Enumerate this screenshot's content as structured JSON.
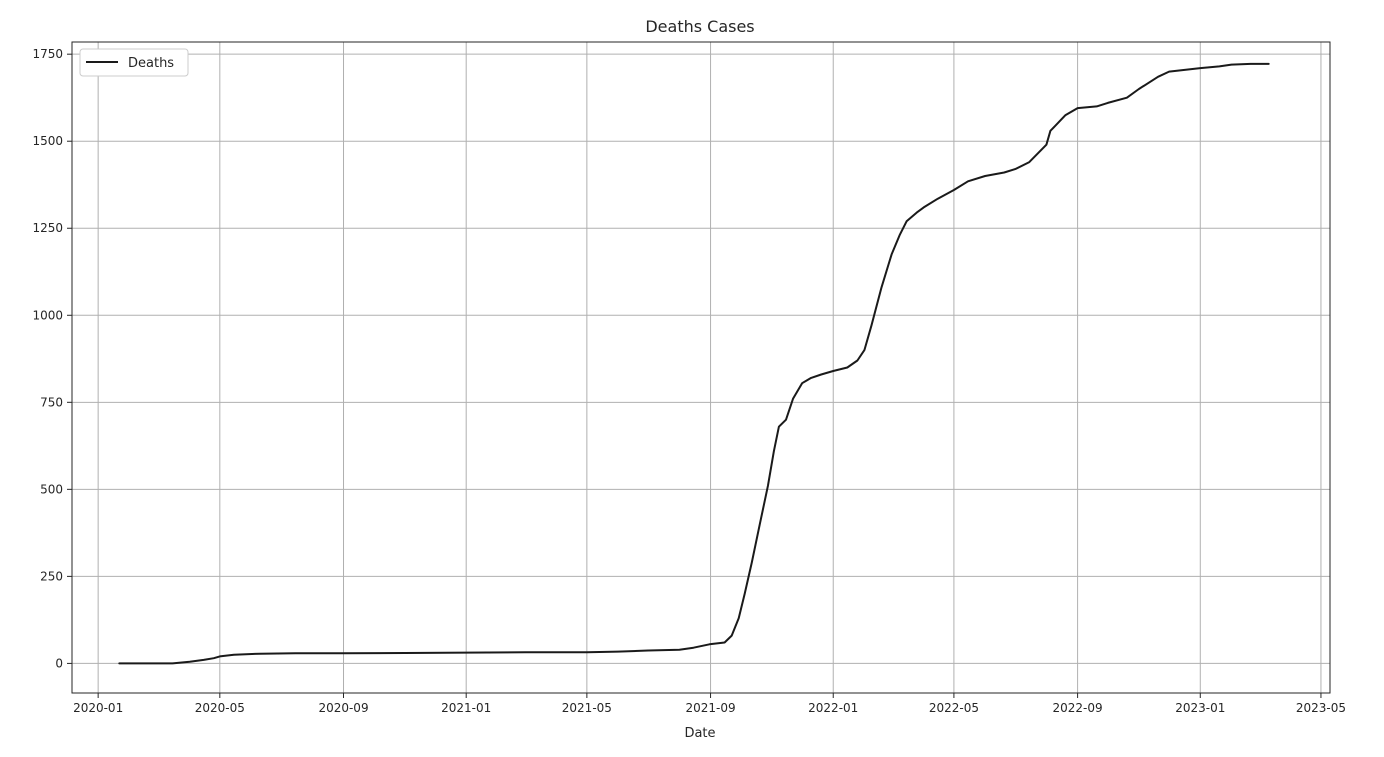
{
  "chart_data": {
    "type": "line",
    "title": "Deaths Cases",
    "xlabel": "Date",
    "ylabel": "",
    "grid": true,
    "legend_position": "top-left",
    "x_ticks": [
      "2020-01",
      "2020-05",
      "2020-09",
      "2021-01",
      "2021-05",
      "2021-09",
      "2022-01",
      "2022-05",
      "2022-09",
      "2023-01",
      "2023-05"
    ],
    "y_ticks": [
      0,
      250,
      500,
      750,
      1000,
      1250,
      1500,
      1750
    ],
    "xlim": [
      "2019-12-06",
      "2023-05-10"
    ],
    "ylim": [
      -85,
      1785
    ],
    "series": [
      {
        "name": "Deaths",
        "color": "#1a1a1a",
        "x": [
          "2020-01-22",
          "2020-02-15",
          "2020-03-15",
          "2020-04-01",
          "2020-04-15",
          "2020-04-25",
          "2020-05-01",
          "2020-05-15",
          "2020-06-10",
          "2020-07-15",
          "2020-09-01",
          "2020-11-01",
          "2021-01-01",
          "2021-03-01",
          "2021-05-01",
          "2021-06-01",
          "2021-07-01",
          "2021-08-01",
          "2021-08-15",
          "2021-08-31",
          "2021-09-15",
          "2021-09-22",
          "2021-09-29",
          "2021-10-05",
          "2021-10-12",
          "2021-10-20",
          "2021-10-28",
          "2021-11-03",
          "2021-11-08",
          "2021-11-15",
          "2021-11-22",
          "2021-12-01",
          "2021-12-10",
          "2021-12-20",
          "2022-01-01",
          "2022-01-15",
          "2022-01-25",
          "2022-02-01",
          "2022-02-08",
          "2022-02-18",
          "2022-02-28",
          "2022-03-08",
          "2022-03-15",
          "2022-03-25",
          "2022-04-01",
          "2022-04-15",
          "2022-05-01",
          "2022-05-15",
          "2022-06-01",
          "2022-06-20",
          "2022-07-01",
          "2022-07-15",
          "2022-08-01",
          "2022-08-05",
          "2022-08-10",
          "2022-08-20",
          "2022-09-01",
          "2022-09-20",
          "2022-10-01",
          "2022-10-20",
          "2022-11-01",
          "2022-11-20",
          "2022-12-01",
          "2023-01-01",
          "2023-01-20",
          "2023-02-01",
          "2023-02-20",
          "2023-03-10"
        ],
        "values": [
          0,
          0,
          0,
          5,
          10,
          15,
          20,
          25,
          28,
          29,
          29,
          30,
          31,
          32,
          32,
          34,
          37,
          39,
          45,
          55,
          60,
          80,
          130,
          200,
          290,
          400,
          510,
          610,
          680,
          700,
          760,
          805,
          820,
          830,
          840,
          850,
          870,
          900,
          970,
          1080,
          1175,
          1230,
          1270,
          1295,
          1310,
          1335,
          1360,
          1385,
          1400,
          1410,
          1420,
          1440,
          1490,
          1530,
          1545,
          1575,
          1595,
          1600,
          1610,
          1625,
          1650,
          1685,
          1700,
          1710,
          1715,
          1720,
          1722,
          1722
        ]
      }
    ]
  }
}
